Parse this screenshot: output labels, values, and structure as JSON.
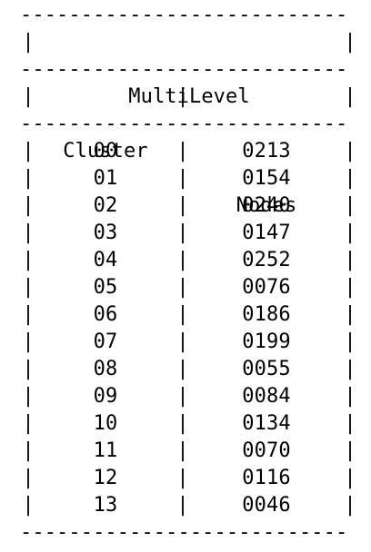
{
  "table": {
    "title": "MultiLevel",
    "border_line": "---------------------------",
    "columns": [
      "Cluster",
      "Nodes"
    ],
    "rows": [
      {
        "cluster": "00",
        "nodes": "0213"
      },
      {
        "cluster": "01",
        "nodes": "0154"
      },
      {
        "cluster": "02",
        "nodes": "0240"
      },
      {
        "cluster": "03",
        "nodes": "0147"
      },
      {
        "cluster": "04",
        "nodes": "0252"
      },
      {
        "cluster": "05",
        "nodes": "0076"
      },
      {
        "cluster": "06",
        "nodes": "0186"
      },
      {
        "cluster": "07",
        "nodes": "0199"
      },
      {
        "cluster": "08",
        "nodes": "0055"
      },
      {
        "cluster": "09",
        "nodes": "0084"
      },
      {
        "cluster": "10",
        "nodes": "0134"
      },
      {
        "cluster": "11",
        "nodes": "0070"
      },
      {
        "cluster": "12",
        "nodes": "0116"
      },
      {
        "cluster": "13",
        "nodes": "0046"
      }
    ]
  }
}
